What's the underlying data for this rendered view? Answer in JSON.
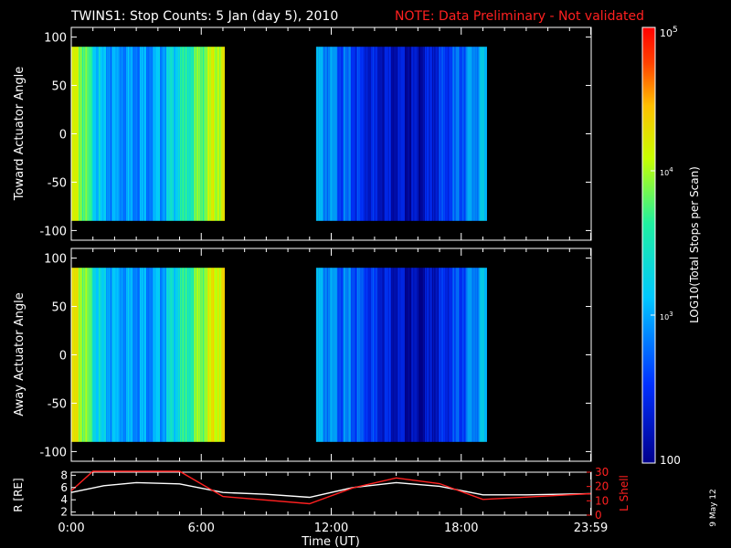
{
  "title": {
    "main": "TWINS1: Stop Counts:  5 Jan (day    5), 2010",
    "note": "NOTE: Data Preliminary - Not validated"
  },
  "panels": {
    "top_ylabel": "Toward Actuator Angle",
    "bottom_ylabel": "Away Actuator Angle",
    "yticks": [
      "100",
      "50",
      "0",
      "-50",
      "-100"
    ]
  },
  "colorbar": {
    "label": "LOG10(Total Stops per Scan)",
    "tick_top": "10",
    "tick_top_exp": "5",
    "tick_mid": "10",
    "tick_mid_exp": "4",
    "tick_low": "10",
    "tick_low_exp": "3",
    "tick_bottom": "100"
  },
  "orbit": {
    "left_label": "R [RE]",
    "right_label": "L Shell",
    "left_ticks": [
      "8",
      "6",
      "4",
      "2"
    ],
    "right_ticks": [
      "30",
      "20",
      "10",
      "0"
    ]
  },
  "xaxis": {
    "label": "Time (UT)",
    "ticks": [
      "0:00",
      "6:00",
      "12:00",
      "18:00",
      "23:59"
    ]
  },
  "footer": {
    "date_stamp": "9 May 12"
  },
  "chart_data": [
    {
      "type": "heatmap",
      "name": "Toward Actuator Angle",
      "xlabel": "Time (UT)",
      "ylabel": "Toward Actuator Angle",
      "xlim": [
        0,
        24
      ],
      "ylim": [
        -110,
        110
      ],
      "y_extent": [
        -90,
        90
      ],
      "data_intervals_hours": [
        [
          0.0,
          7.1
        ],
        [
          11.3,
          19.2
        ]
      ],
      "colorscale_log10": [
        2,
        5
      ],
      "log10_counts_by_time": [
        {
          "t": 0.3,
          "v": 4.2
        },
        {
          "t": 1.5,
          "v": 3.1
        },
        {
          "t": 4.0,
          "v": 3.1
        },
        {
          "t": 6.8,
          "v": 4.3
        },
        {
          "t": 12.0,
          "v": 3.0
        },
        {
          "t": 13.5,
          "v": 2.6
        },
        {
          "t": 16.0,
          "v": 2.3
        },
        {
          "t": 18.0,
          "v": 2.9
        },
        {
          "t": 19.0,
          "v": 3.2
        }
      ]
    },
    {
      "type": "heatmap",
      "name": "Away Actuator Angle",
      "xlabel": "Time (UT)",
      "ylabel": "Away Actuator Angle",
      "xlim": [
        0,
        24
      ],
      "ylim": [
        -110,
        110
      ],
      "y_extent": [
        -90,
        90
      ],
      "data_intervals_hours": [
        [
          0.0,
          7.1
        ],
        [
          11.3,
          19.2
        ]
      ],
      "colorscale_log10": [
        2,
        5
      ],
      "log10_counts_by_time": [
        {
          "t": 0.3,
          "v": 4.3
        },
        {
          "t": 1.5,
          "v": 3.2
        },
        {
          "t": 4.0,
          "v": 3.1
        },
        {
          "t": 6.8,
          "v": 4.4
        },
        {
          "t": 12.0,
          "v": 3.0
        },
        {
          "t": 13.5,
          "v": 2.8
        },
        {
          "t": 16.0,
          "v": 2.2
        },
        {
          "t": 18.0,
          "v": 2.8
        },
        {
          "t": 19.0,
          "v": 3.2
        }
      ]
    },
    {
      "type": "line",
      "name": "Orbit",
      "xlim": [
        0,
        24
      ],
      "series": [
        {
          "name": "R [RE]",
          "axis": "left",
          "color": "#ffffff",
          "ylim": [
            1.5,
            8.5
          ],
          "points": [
            {
              "x": 0.0,
              "y": 5.2
            },
            {
              "x": 1.5,
              "y": 6.3
            },
            {
              "x": 3.0,
              "y": 6.8
            },
            {
              "x": 5.0,
              "y": 6.6
            },
            {
              "x": 7.0,
              "y": 5.2
            },
            {
              "x": 9.0,
              "y": 4.9
            },
            {
              "x": 11.0,
              "y": 4.4
            },
            {
              "x": 13.0,
              "y": 6.0
            },
            {
              "x": 15.0,
              "y": 6.8
            },
            {
              "x": 17.0,
              "y": 6.2
            },
            {
              "x": 19.0,
              "y": 4.8
            },
            {
              "x": 21.0,
              "y": 4.8
            },
            {
              "x": 23.98,
              "y": 5.0
            }
          ]
        },
        {
          "name": "L Shell",
          "axis": "right",
          "color": "#ff2020",
          "ylim": [
            0,
            30
          ],
          "points": [
            {
              "x": 0.0,
              "y": 17
            },
            {
              "x": 1.0,
              "y": 32
            },
            {
              "x": 5.0,
              "y": 32
            },
            {
              "x": 7.0,
              "y": 13
            },
            {
              "x": 11.0,
              "y": 8
            },
            {
              "x": 13.0,
              "y": 19
            },
            {
              "x": 15.0,
              "y": 26
            },
            {
              "x": 17.0,
              "y": 22
            },
            {
              "x": 19.0,
              "y": 11
            },
            {
              "x": 23.98,
              "y": 15
            }
          ]
        }
      ]
    }
  ]
}
